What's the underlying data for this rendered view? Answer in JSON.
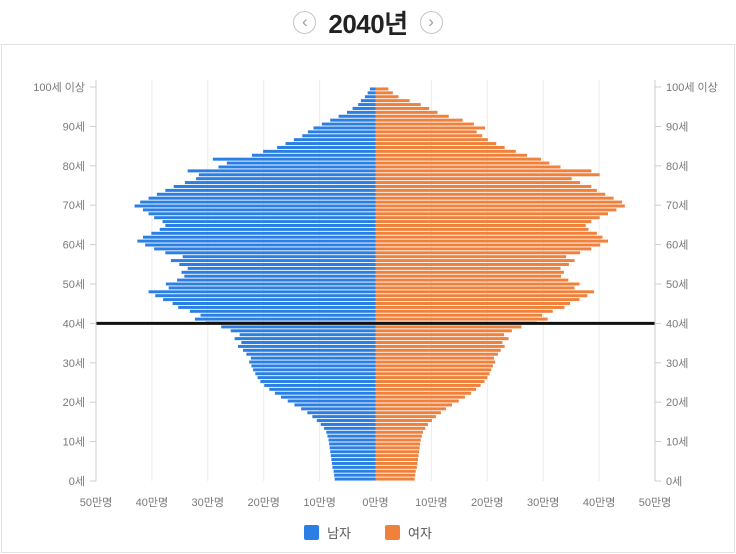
{
  "header": {
    "title": "2040년",
    "icons": {
      "chevron_left": "‹",
      "chevron_right": "›"
    }
  },
  "legend": {
    "items": [
      {
        "label": "남자",
        "color": "#2b7fe3"
      },
      {
        "label": "여자",
        "color": "#f0813c"
      }
    ]
  },
  "colors": {
    "male": "#2b7fe3",
    "female": "#f0813c",
    "reference_line": "#111111",
    "axis": "#cccccc",
    "grid": "#ebebeb",
    "label": "#77797b",
    "panel_border": "#e3e3e3"
  },
  "chart_data": {
    "type": "bar",
    "subtype": "population-pyramid",
    "title": "2040년",
    "unit": "만명",
    "age_min": 0,
    "age_max": 100,
    "age_step": 1,
    "age_axis": {
      "ticks": [
        0,
        10,
        20,
        30,
        40,
        50,
        60,
        70,
        80,
        90,
        100
      ],
      "labels": [
        "0세",
        "10세",
        "20세",
        "30세",
        "40세",
        "50세",
        "60세",
        "70세",
        "80세",
        "90세",
        "100세 이상"
      ]
    },
    "value_axis": {
      "ticks": [
        -50,
        -40,
        -30,
        -20,
        -10,
        0,
        10,
        20,
        30,
        40,
        50
      ],
      "labels": [
        "50만명",
        "40만명",
        "30만명",
        "20만명",
        "10만명",
        "0만명",
        "10만명",
        "20만명",
        "30만명",
        "40만명",
        "50만명"
      ],
      "xlim": [
        -50,
        50
      ],
      "grid": true
    },
    "reference_line_age": 40,
    "legend_position": "bottom",
    "series": [
      {
        "name": "남자",
        "side": "left",
        "color": "#2b7fe3",
        "values": [
          7.3,
          7.4,
          7.5,
          7.7,
          7.8,
          7.9,
          8.0,
          8.1,
          8.2,
          8.3,
          8.4,
          8.6,
          8.8,
          9.2,
          9.8,
          10.5,
          11.3,
          12.2,
          13.3,
          14.5,
          15.7,
          16.9,
          18.0,
          19.0,
          19.9,
          20.6,
          21.1,
          21.5,
          21.9,
          22.2,
          22.6,
          22.3,
          23.1,
          23.7,
          24.6,
          24.0,
          25.2,
          24.3,
          25.9,
          27.6,
          30.4,
          32.3,
          31.3,
          33.2,
          35.3,
          36.3,
          38.0,
          39.4,
          40.6,
          37.0,
          37.5,
          35.5,
          34.2,
          34.7,
          33.6,
          35.1,
          36.6,
          34.5,
          37.6,
          39.6,
          41.2,
          42.6,
          41.6,
          40.1,
          38.6,
          37.6,
          38.1,
          39.6,
          40.6,
          41.6,
          43.1,
          42.1,
          40.6,
          39.1,
          37.6,
          36.1,
          34.1,
          32.1,
          31.6,
          33.6,
          28.1,
          26.6,
          29.1,
          22.1,
          20.1,
          17.6,
          16.1,
          14.6,
          13.1,
          12.1,
          11.1,
          9.6,
          8.1,
          6.6,
          5.1,
          4.1,
          3.1,
          2.6,
          1.9,
          1.4,
          1.0
        ]
      },
      {
        "name": "여자",
        "side": "right",
        "color": "#f0813c",
        "values": [
          7.0,
          7.1,
          7.2,
          7.4,
          7.5,
          7.6,
          7.7,
          7.8,
          7.9,
          8.0,
          8.1,
          8.3,
          8.5,
          8.9,
          9.4,
          10.1,
          10.8,
          11.7,
          12.6,
          13.7,
          14.9,
          16.0,
          17.1,
          18.0,
          18.8,
          19.5,
          20.0,
          20.4,
          20.7,
          21.0,
          21.4,
          21.2,
          21.9,
          22.4,
          23.1,
          22.7,
          23.8,
          23.0,
          24.4,
          26.1,
          28.9,
          30.8,
          29.8,
          31.7,
          33.8,
          34.8,
          36.5,
          37.9,
          39.1,
          35.6,
          36.5,
          34.5,
          33.2,
          33.7,
          33.1,
          34.6,
          35.6,
          34.1,
          36.6,
          38.6,
          40.2,
          41.6,
          40.6,
          39.6,
          38.1,
          37.6,
          38.6,
          40.1,
          41.6,
          43.1,
          44.6,
          44.1,
          42.6,
          41.1,
          39.6,
          38.6,
          36.6,
          35.1,
          40.1,
          38.6,
          33.1,
          31.1,
          29.6,
          27.1,
          25.1,
          23.1,
          21.6,
          20.1,
          19.1,
          18.1,
          19.6,
          17.6,
          15.6,
          13.1,
          11.1,
          9.6,
          8.1,
          6.1,
          4.1,
          3.1,
          2.3
        ]
      }
    ]
  }
}
